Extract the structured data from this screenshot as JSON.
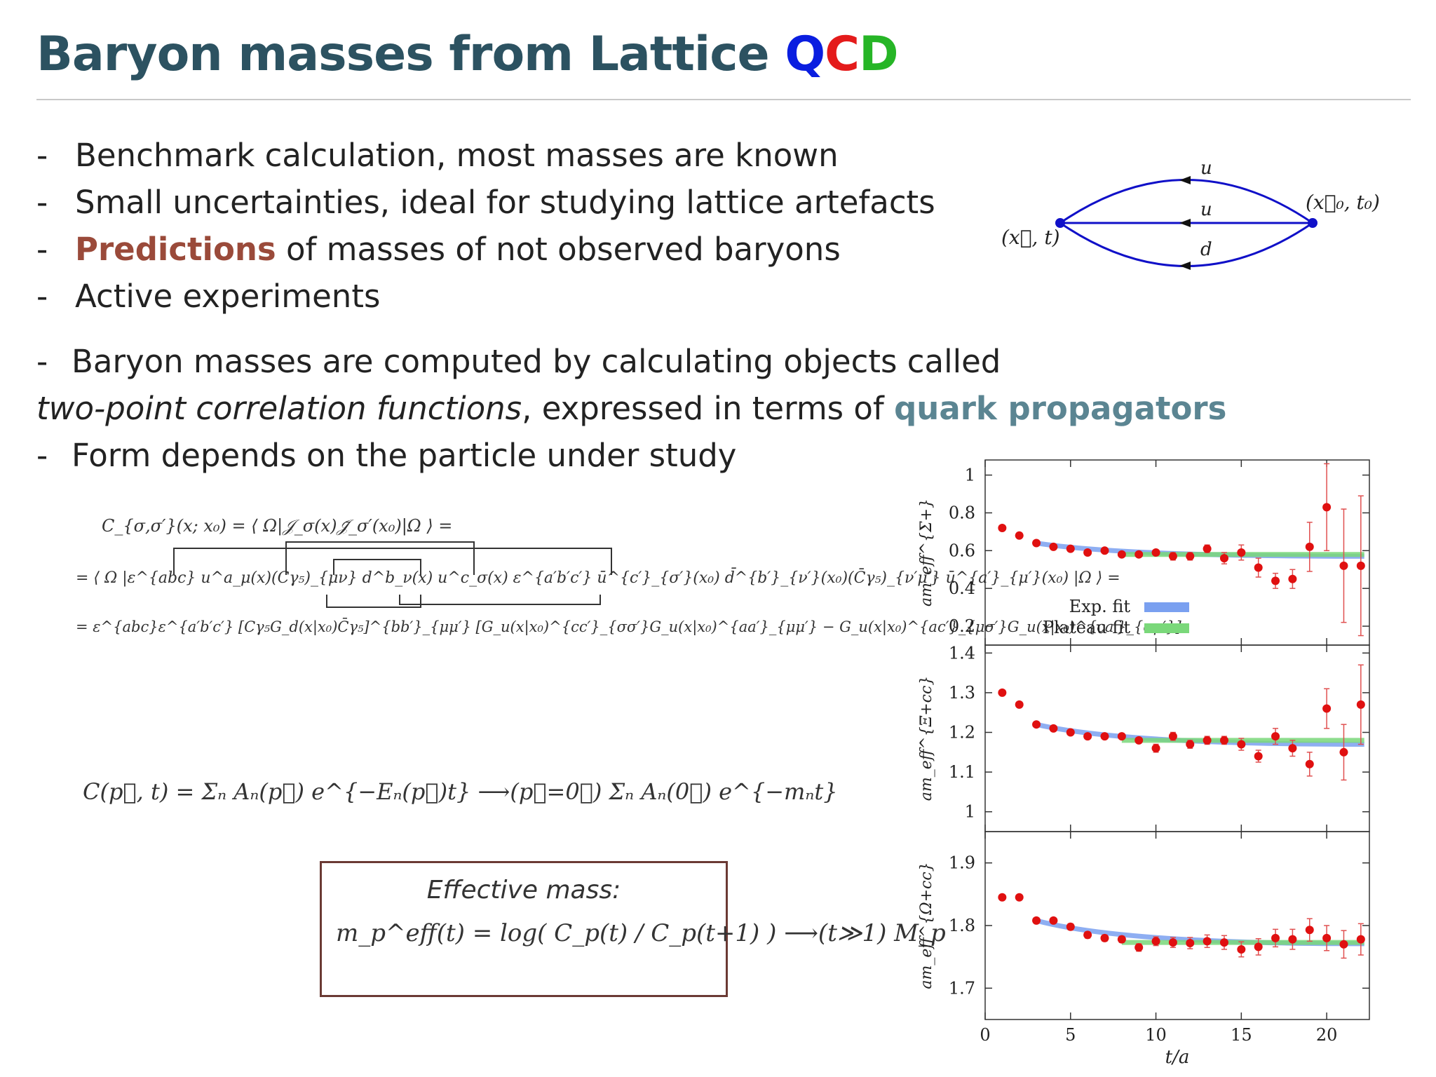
{
  "slide": {
    "title_main": "Baryon masses from Lattice ",
    "title_q": "Q",
    "title_c": "C",
    "title_d": "D"
  },
  "colors": {
    "title": "#2c5261",
    "q": "#0a1ee0",
    "c": "#e41b1b",
    "d": "#26b526",
    "predictions": "#9a4a3a",
    "quark_propagators": "#5b8592",
    "box_border": "#6b3a34",
    "diagram_line": "#1010c8",
    "exp_fit_band": "#7aa0f0",
    "plateau_fit_band": "#7ad87a",
    "data_points": "#e01010"
  },
  "bullets": [
    {
      "dash": "-",
      "text": "Benchmark calculation, most masses are known"
    },
    {
      "dash": "-",
      "text": "Small uncertainties, ideal for studying lattice artefacts"
    },
    {
      "dash": "-",
      "highlight": "Predictions",
      "text": " of masses of not observed baryons"
    },
    {
      "dash": "-",
      "text": "Active experiments"
    }
  ],
  "paragraph": {
    "line1_dash": "-",
    "line1": "Baryon masses are computed by calculating objects called",
    "line2_italic": "two-point correlation functions",
    "line2_mid": ", expressed in terms of ",
    "line2_bold": "quark propagators",
    "line3_dash": "-",
    "line3": "Form depends on the particle under study"
  },
  "diagram": {
    "quark_top": "u",
    "quark_mid": "u",
    "quark_bot": "d",
    "left_label": "(x⃗, t)",
    "right_label": "(x⃗₀, t₀)"
  },
  "equations": {
    "corr_line1": "C_{σ,σ′}(x; x₀) = ⟨ Ω|𝒥_σ(x)𝒥̄_σ′(x₀)|Ω ⟩ =",
    "corr_line2": "= ⟨ Ω |ε^{abc} u^a_μ(x)(Cγ₅)_{μν} d^b_ν(x) u^c_σ(x) ε^{a′b′c′} ū^{c′}_{σ′}(x₀) d̄^{b′}_{ν′}(x₀)(C̄γ₅)_{ν′μ′} ū^{a′}_{μ′}(x₀) |Ω ⟩ =",
    "corr_line3": "= ε^{abc}ε^{a′b′c′} [Cγ₅G_d(x|x₀)C̄γ₅]^{bb′}_{μμ′} [G_u(x|x₀)^{cc′}_{σσ′}G_u(x|x₀)^{aa′}_{μμ′} − G_u(x|x₀)^{ac′}_{μσ′}G_u(x|x₀)^{ca′}_{σμ′}]",
    "spectral": "C(p⃗, t) = Σₙ Aₙ(p⃗) e^{−Eₙ(p⃗)t}  ⟶(p⃗=0⃗)  Σₙ Aₙ(0⃗) e^{−mₙt}",
    "effective_mass_title": "Effective mass:",
    "effective_mass_eq": "m_p^eff(t) = log( C_p(t) / C_p(t+1) )  ⟶(t≫1)  M_p"
  },
  "chart_data": [
    {
      "type": "scatter",
      "ylabel": "am_eff^{Σ+}",
      "ylim": [
        0.1,
        1.08
      ],
      "yticks": [
        0.2,
        0.4,
        0.6,
        0.8,
        1
      ],
      "ytick_labels": [
        "0.2",
        "0.4",
        "0.6",
        "0.8",
        "1"
      ],
      "legend": {
        "placement": "bottom-left",
        "entries": [
          "Exp. fit",
          "Plateau fit"
        ]
      },
      "exp_fit_level": 0.57,
      "plateau_fit_level": 0.58,
      "points": [
        {
          "x": 1,
          "y": 0.72,
          "err": 0.01
        },
        {
          "x": 2,
          "y": 0.68,
          "err": 0.01
        },
        {
          "x": 3,
          "y": 0.64,
          "err": 0.01
        },
        {
          "x": 4,
          "y": 0.62,
          "err": 0.01
        },
        {
          "x": 5,
          "y": 0.61,
          "err": 0.01
        },
        {
          "x": 6,
          "y": 0.59,
          "err": 0.01
        },
        {
          "x": 7,
          "y": 0.6,
          "err": 0.01
        },
        {
          "x": 8,
          "y": 0.58,
          "err": 0.01
        },
        {
          "x": 9,
          "y": 0.58,
          "err": 0.01
        },
        {
          "x": 10,
          "y": 0.59,
          "err": 0.01
        },
        {
          "x": 11,
          "y": 0.57,
          "err": 0.02
        },
        {
          "x": 12,
          "y": 0.57,
          "err": 0.02
        },
        {
          "x": 13,
          "y": 0.61,
          "err": 0.02
        },
        {
          "x": 14,
          "y": 0.56,
          "err": 0.03
        },
        {
          "x": 15,
          "y": 0.59,
          "err": 0.04
        },
        {
          "x": 16,
          "y": 0.51,
          "err": 0.05
        },
        {
          "x": 17,
          "y": 0.44,
          "err": 0.04
        },
        {
          "x": 18,
          "y": 0.45,
          "err": 0.05
        },
        {
          "x": 19,
          "y": 0.62,
          "err": 0.13
        },
        {
          "x": 20,
          "y": 0.83,
          "err": 0.23
        },
        {
          "x": 21,
          "y": 0.52,
          "err": 0.3
        },
        {
          "x": 22,
          "y": 0.52,
          "err": 0.37
        }
      ]
    },
    {
      "type": "scatter",
      "ylabel": "am_eff^{Ξ+cc}",
      "ylim": [
        0.95,
        1.42
      ],
      "yticks": [
        1,
        1.1,
        1.2,
        1.3,
        1.4
      ],
      "ytick_labels": [
        "1",
        "1.1",
        "1.2",
        "1.3",
        "1.4"
      ],
      "exp_fit_level": 1.17,
      "plateau_fit_level": 1.18,
      "points": [
        {
          "x": 1,
          "y": 1.3,
          "err": 0.005
        },
        {
          "x": 2,
          "y": 1.27,
          "err": 0.005
        },
        {
          "x": 3,
          "y": 1.22,
          "err": 0.005
        },
        {
          "x": 4,
          "y": 1.21,
          "err": 0.005
        },
        {
          "x": 5,
          "y": 1.2,
          "err": 0.005
        },
        {
          "x": 6,
          "y": 1.19,
          "err": 0.005
        },
        {
          "x": 7,
          "y": 1.19,
          "err": 0.005
        },
        {
          "x": 8,
          "y": 1.19,
          "err": 0.005
        },
        {
          "x": 9,
          "y": 1.18,
          "err": 0.005
        },
        {
          "x": 10,
          "y": 1.16,
          "err": 0.01
        },
        {
          "x": 11,
          "y": 1.19,
          "err": 0.01
        },
        {
          "x": 12,
          "y": 1.17,
          "err": 0.01
        },
        {
          "x": 13,
          "y": 1.18,
          "err": 0.01
        },
        {
          "x": 14,
          "y": 1.18,
          "err": 0.01
        },
        {
          "x": 15,
          "y": 1.17,
          "err": 0.015
        },
        {
          "x": 16,
          "y": 1.14,
          "err": 0.015
        },
        {
          "x": 17,
          "y": 1.19,
          "err": 0.02
        },
        {
          "x": 18,
          "y": 1.16,
          "err": 0.02
        },
        {
          "x": 19,
          "y": 1.12,
          "err": 0.03
        },
        {
          "x": 20,
          "y": 1.26,
          "err": 0.05
        },
        {
          "x": 21,
          "y": 1.15,
          "err": 0.07
        },
        {
          "x": 22,
          "y": 1.27,
          "err": 0.1
        }
      ]
    },
    {
      "type": "scatter",
      "ylabel": "am_eff^{Ω+cc}",
      "ylim": [
        1.65,
        1.95
      ],
      "yticks": [
        1.7,
        1.8,
        1.9
      ],
      "ytick_labels": [
        "1.7",
        "1.8",
        "1.9"
      ],
      "xlabel": "t/a",
      "xlim": [
        0,
        22.5
      ],
      "xticks": [
        0,
        5,
        10,
        15,
        20
      ],
      "xtick_labels": [
        "0",
        "5",
        "10",
        "15",
        "20"
      ],
      "exp_fit_level": 1.771,
      "plateau_fit_level": 1.773,
      "points": [
        {
          "x": 1,
          "y": 1.845,
          "err": 0.004
        },
        {
          "x": 2,
          "y": 1.845,
          "err": 0.004
        },
        {
          "x": 3,
          "y": 1.808,
          "err": 0.004
        },
        {
          "x": 4,
          "y": 1.808,
          "err": 0.004
        },
        {
          "x": 5,
          "y": 1.798,
          "err": 0.005
        },
        {
          "x": 6,
          "y": 1.785,
          "err": 0.005
        },
        {
          "x": 7,
          "y": 1.78,
          "err": 0.005
        },
        {
          "x": 8,
          "y": 1.778,
          "err": 0.005
        },
        {
          "x": 9,
          "y": 1.765,
          "err": 0.006
        },
        {
          "x": 10,
          "y": 1.775,
          "err": 0.007
        },
        {
          "x": 11,
          "y": 1.773,
          "err": 0.008
        },
        {
          "x": 12,
          "y": 1.772,
          "err": 0.009
        },
        {
          "x": 13,
          "y": 1.775,
          "err": 0.01
        },
        {
          "x": 14,
          "y": 1.773,
          "err": 0.011
        },
        {
          "x": 15,
          "y": 1.762,
          "err": 0.012
        },
        {
          "x": 16,
          "y": 1.766,
          "err": 0.013
        },
        {
          "x": 17,
          "y": 1.78,
          "err": 0.014
        },
        {
          "x": 18,
          "y": 1.778,
          "err": 0.016
        },
        {
          "x": 19,
          "y": 1.793,
          "err": 0.018
        },
        {
          "x": 20,
          "y": 1.78,
          "err": 0.02
        },
        {
          "x": 21,
          "y": 1.77,
          "err": 0.022
        },
        {
          "x": 22,
          "y": 1.778,
          "err": 0.025
        }
      ]
    }
  ]
}
